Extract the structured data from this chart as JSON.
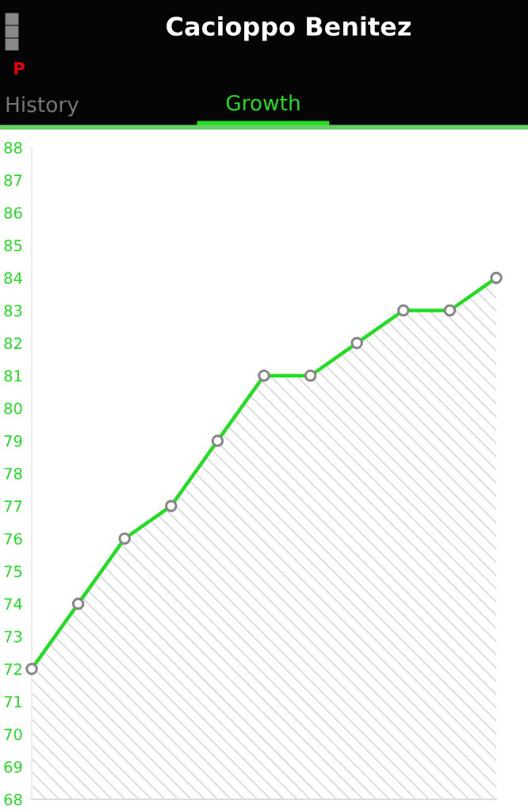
{
  "chart_data": {
    "type": "area",
    "title": "Cacioppo Benitez",
    "annotations": [
      "P",
      "History",
      "Growth"
    ],
    "categories": [
      null,
      null,
      null,
      null,
      null,
      null,
      null,
      null,
      null,
      null,
      null
    ],
    "series": [
      {
        "color": "#22dd22",
        "values": [
          72,
          74,
          76,
          77,
          79,
          81,
          81,
          82,
          83,
          83,
          84
        ]
      }
    ],
    "ylim": [
      68,
      88
    ],
    "yticks": [
      68,
      69,
      70,
      71,
      72,
      73,
      74,
      75,
      76,
      77,
      78,
      79,
      80,
      81,
      82,
      83,
      84,
      85,
      86,
      87,
      88
    ],
    "marker": "circle",
    "grid": false,
    "legend": false
  }
}
